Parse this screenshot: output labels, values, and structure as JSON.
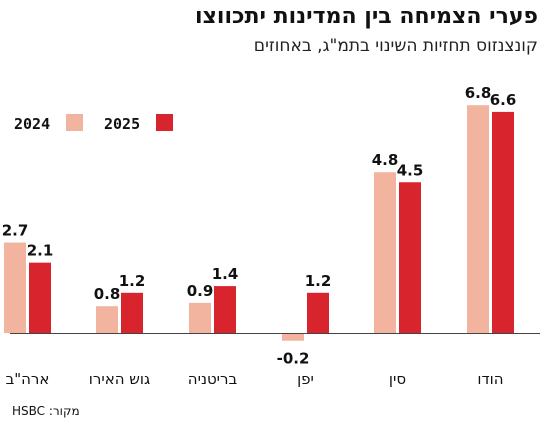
{
  "header": {
    "title": "פערי הצמיחה בין המדינות יתכווצו",
    "subtitle": "קונצנזוס תחזיות השינוי בתמ\"ג, באחוזים"
  },
  "footer": {
    "source": "מקור: HSBC"
  },
  "colors": {
    "series_2024": "#f2b49e",
    "series_2025": "#d8242c",
    "baseline": "#444444"
  },
  "chart_data": {
    "type": "bar",
    "categories": [
      "ארה\"ב",
      "גוש האירו",
      "בריטניה",
      "יפן",
      "סין",
      "הודו"
    ],
    "series": [
      {
        "name": "2024",
        "values": [
          2.7,
          0.8,
          0.9,
          -0.2,
          4.8,
          6.8
        ]
      },
      {
        "name": "2025",
        "values": [
          2.1,
          1.2,
          1.4,
          1.2,
          4.5,
          6.6
        ]
      }
    ],
    "value_labels": [
      [
        "2.7",
        "0.8",
        "0.9",
        "-0.2",
        "4.8",
        "6.8"
      ],
      [
        "2.1",
        "1.2",
        "1.4",
        "1.2",
        "4.5",
        "6.6"
      ]
    ],
    "legend": {
      "position": "top-left"
    },
    "grid": false,
    "ylim": [
      -0.2,
      6.8
    ]
  }
}
